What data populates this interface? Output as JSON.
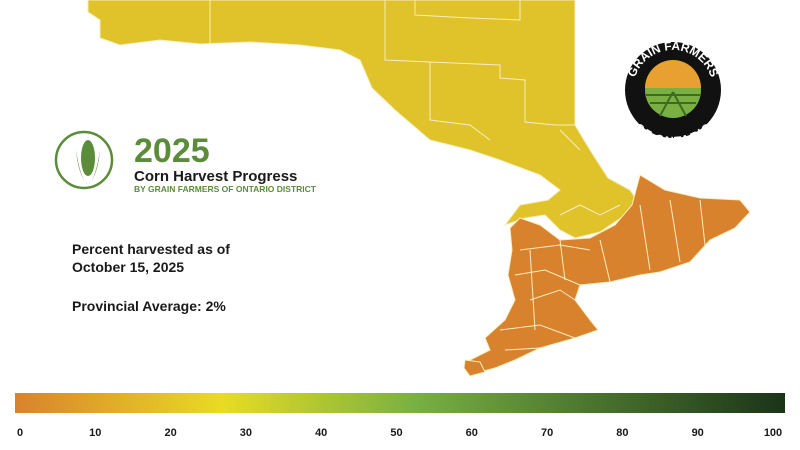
{
  "header": {
    "year": "2025",
    "title": "Corn Harvest Progress",
    "subtitle": "BY GRAIN FARMERS OF ONTARIO DISTRICT"
  },
  "info": {
    "line1": "Percent harvested as of",
    "line2": "October 15, 2025",
    "average": "Provincial Average: 2%"
  },
  "logo": {
    "top": "GRAIN FARMERS",
    "bottom": "OF ONTARIO"
  },
  "legend": {
    "ticks": [
      0,
      10,
      20,
      30,
      40,
      50,
      60,
      70,
      80,
      90,
      100
    ]
  }
}
